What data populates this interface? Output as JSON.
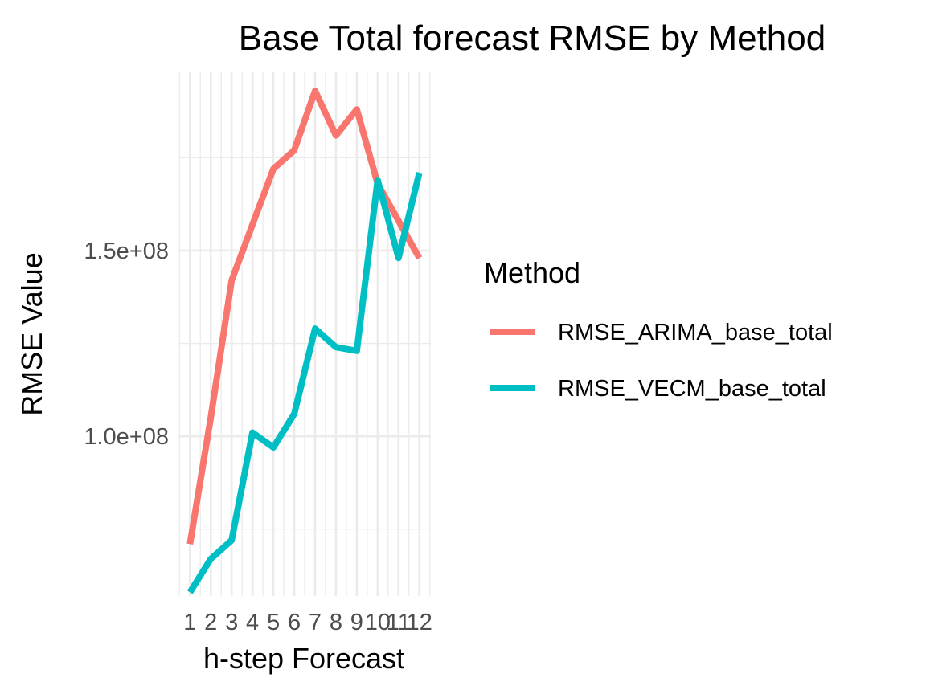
{
  "chart_data": {
    "type": "line",
    "title": "Base Total forecast RMSE by Method",
    "xlabel": "h-step Forecast",
    "ylabel": "RMSE Value",
    "x": [
      1,
      2,
      3,
      4,
      5,
      6,
      7,
      8,
      9,
      10,
      11,
      12
    ],
    "x_tick_labels": [
      "1",
      "2",
      "3",
      "4",
      "5",
      "6",
      "7",
      "8",
      "9",
      "10",
      "11",
      "12"
    ],
    "y_ticks": [
      {
        "value": 100000000,
        "label": "1.0e+08"
      },
      {
        "value": 150000000,
        "label": "1.5e+08"
      }
    ],
    "ylim": [
      57000000,
      198000000
    ],
    "xlim": [
      0.45,
      12.55
    ],
    "grid": true,
    "legend": {
      "title": "Method",
      "position": "right"
    },
    "series": [
      {
        "name": "RMSE_ARIMA_base_total",
        "color": "#F8766D",
        "values": [
          71000000,
          105000000,
          142000000,
          157000000,
          172000000,
          177000000,
          193000000,
          181000000,
          188000000,
          168000000,
          158000000,
          148000000
        ]
      },
      {
        "name": "RMSE_VECM_base_total",
        "color": "#00BFC4",
        "values": [
          58000000,
          67000000,
          72000000,
          101000000,
          97000000,
          106000000,
          129000000,
          124000000,
          123000000,
          169000000,
          148000000,
          171000000
        ]
      }
    ]
  }
}
